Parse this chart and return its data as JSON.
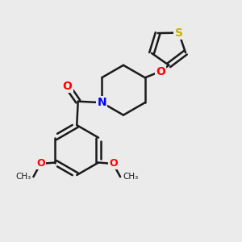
{
  "bg_color": "#ebebeb",
  "bond_color": "#1a1a1a",
  "sulfur_color": "#c8b400",
  "nitrogen_color": "#0000ff",
  "oxygen_color": "#ff0000",
  "bond_width": 1.8,
  "figsize": [
    3.0,
    3.0
  ],
  "dpi": 100,
  "xlim": [
    0,
    10
  ],
  "ylim": [
    0,
    10
  ]
}
